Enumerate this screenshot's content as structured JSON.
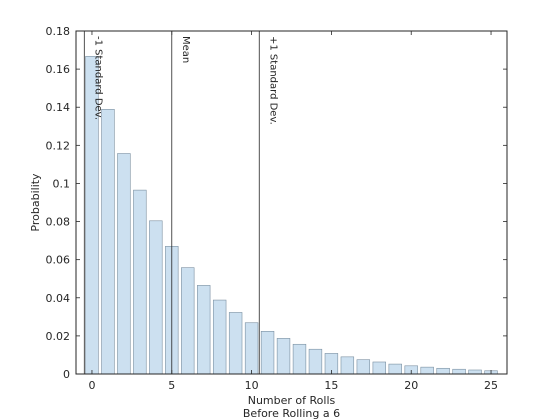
{
  "chart_data": {
    "type": "bar",
    "x": [
      0,
      1,
      2,
      3,
      4,
      5,
      6,
      7,
      8,
      9,
      10,
      11,
      12,
      13,
      14,
      15,
      16,
      17,
      18,
      19,
      20,
      21,
      22,
      23,
      24,
      25
    ],
    "values": [
      0.1667,
      0.1389,
      0.1157,
      0.0965,
      0.0804,
      0.067,
      0.0558,
      0.0465,
      0.0388,
      0.0323,
      0.0269,
      0.0224,
      0.0187,
      0.0156,
      0.013,
      0.0108,
      0.009,
      0.0075,
      0.0063,
      0.0052,
      0.0043,
      0.0036,
      0.003,
      0.0025,
      0.0021,
      0.0017
    ],
    "xlabel_lines": [
      "Number of Rolls",
      "Before Rolling a 6"
    ],
    "ylabel": "Probability",
    "xlim": [
      -1,
      26
    ],
    "ylim": [
      0,
      0.18
    ],
    "xticks": [
      0,
      5,
      10,
      15,
      20,
      25
    ],
    "yticks": [
      0,
      0.02,
      0.04,
      0.06,
      0.08,
      0.1,
      0.12,
      0.14,
      0.16,
      0.18
    ],
    "ytick_labels": [
      "0",
      "0.02",
      "0.04",
      "0.06",
      "0.08",
      "0.1",
      "0.12",
      "0.14",
      "0.16",
      "0.18"
    ],
    "bar_color": "#cce0f0",
    "bar_edge_color": "#7a8fa0",
    "grid": false,
    "reference_lines": [
      {
        "x": -0.48,
        "label": "-1 Standard Dev."
      },
      {
        "x": 5,
        "label": "Mean"
      },
      {
        "x": 10.48,
        "label": "+1 Standard Dev."
      }
    ]
  }
}
